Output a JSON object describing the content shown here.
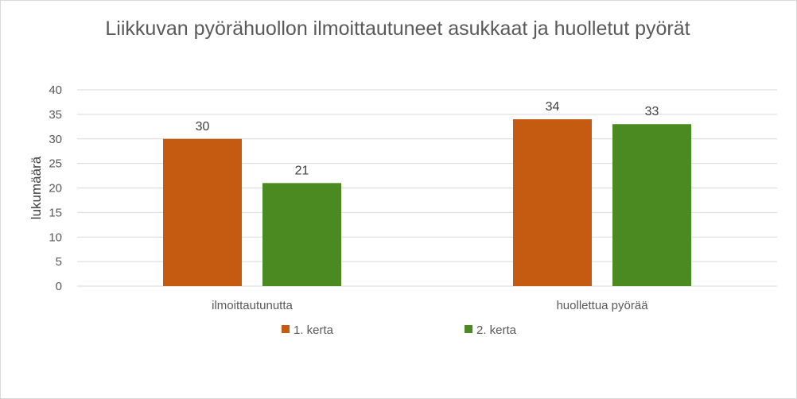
{
  "chart_data": {
    "type": "bar",
    "title": "Liikkuvan pyörähuollon ilmoittautuneet asukkaat ja huolletut pyörät",
    "xlabel": "",
    "ylabel": "lukumäärä",
    "ylim": [
      0,
      40
    ],
    "yticks": [
      0,
      5,
      10,
      15,
      20,
      25,
      30,
      35,
      40
    ],
    "grid": true,
    "legend_position": "bottom",
    "categories": [
      "ilmoittautunutta",
      "huollettua pyörää"
    ],
    "series": [
      {
        "name": "1. kerta",
        "values": [
          30,
          34
        ],
        "color": "#C55A11"
      },
      {
        "name": "2. kerta",
        "values": [
          21,
          33
        ],
        "color": "#4B8A21"
      }
    ]
  }
}
